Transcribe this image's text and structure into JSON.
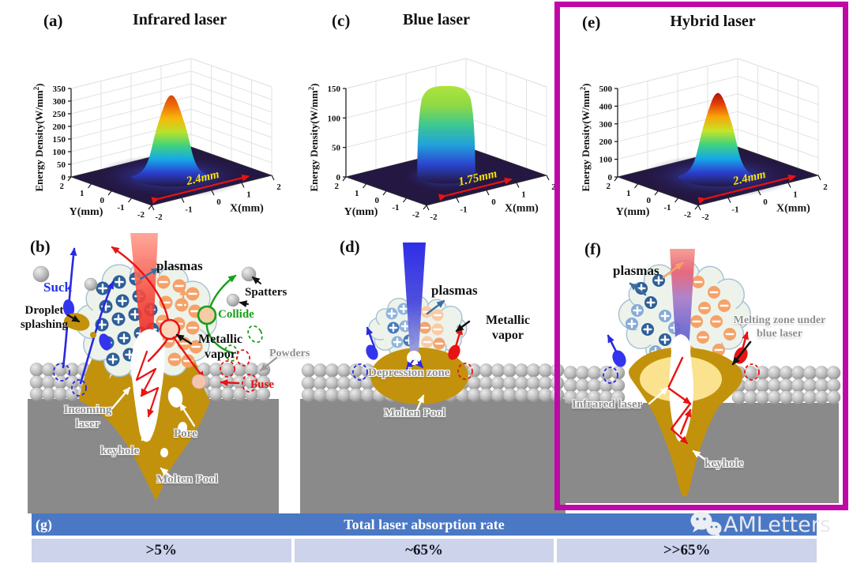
{
  "colors": {
    "magenta_border": "#c008a8",
    "table_header_bg": "#4a78c4",
    "table_row_bg": "#cdd3ea",
    "molten_pool_gold": "#c3920c",
    "melting_zone_yellow": "#fbe28e",
    "substrate_gray": "#8a8a8a",
    "infrared_beam_red": "#ee2222",
    "blue_beam": "#2323e6",
    "plasma_plus_blue": "#2e5f99",
    "plasma_minus_orange": "#f5a269",
    "annotation_yellow": "#ffe400",
    "annotation_red": "#e81313"
  },
  "panels": {
    "a": {
      "label": "(a)",
      "title": "Infrared laser"
    },
    "b": {
      "label": "(b)",
      "labels": {
        "plasmas": "plasmas",
        "suck": "Suck",
        "droplet_splashing": "Droplet splashing",
        "spatters": "Spatters",
        "collide": "Collide",
        "metallic_vapor": "Metallic vapor",
        "powders": "Powders",
        "fuse": "Fuse",
        "incoming_laser": "Incoming laser",
        "keyhole": "keyhole",
        "pore": "Pore",
        "molten_pool": "Molten Pool"
      }
    },
    "c": {
      "label": "(c)",
      "title": "Blue laser"
    },
    "d": {
      "label": "(d)",
      "labels": {
        "plasmas": "plasmas",
        "metallic_vapor": "Metallic vapor",
        "depression_zone": "Depression zone",
        "molten_pool": "Molten Pool"
      }
    },
    "e": {
      "label": "(e)",
      "title": "Hybrid laser"
    },
    "f": {
      "label": "(f)",
      "labels": {
        "plasmas": "plasmas",
        "melting_zone": "Melting zone under blue laser",
        "infrared_laser": "Infrared laser",
        "keyhole": "keyhole"
      }
    },
    "g": {
      "label": "(g)"
    }
  },
  "watermark": {
    "name": "AMLetters"
  },
  "chart_data": [
    {
      "type": "area",
      "subtype": "3d-surface",
      "panel": "(a)",
      "title": "Infrared laser",
      "profile": "gaussian",
      "colormap": "jet",
      "zlabel": "Energy Density(W/mm2)",
      "xlabel": "X(mm)",
      "ylabel": "Y(mm)",
      "zlim": [
        0,
        350
      ],
      "zticks": [
        0,
        50,
        100,
        150,
        200,
        250,
        300,
        350
      ],
      "xlim": [
        -2,
        2
      ],
      "ylim": [
        -2,
        2
      ],
      "xticks": [
        -2,
        -1,
        0,
        1,
        2
      ],
      "yticks": [
        2,
        1,
        0,
        -1,
        -2
      ],
      "peak_value": 320,
      "spot_diameter_mm": 2.4,
      "spot_label": "2.4mm",
      "gradient": [
        "#241742",
        "#2b3fd0",
        "#16a8e8",
        "#3fd27e",
        "#b8e22b",
        "#f7b70a",
        "#ec6a0a",
        "#d03808"
      ]
    },
    {
      "type": "area",
      "subtype": "3d-surface",
      "panel": "(c)",
      "title": "Blue laser",
      "profile": "flattop",
      "colormap": "jet",
      "zlabel": "Energy Density(W/mm2)",
      "xlabel": "X(mm)",
      "ylabel": "Y(mm)",
      "zlim": [
        0,
        150
      ],
      "zticks": [
        0,
        50,
        100,
        150
      ],
      "xlim": [
        -2,
        2
      ],
      "ylim": [
        -2,
        2
      ],
      "xticks": [
        -2,
        -1,
        0,
        1,
        2
      ],
      "yticks": [
        2,
        1,
        0,
        -1,
        -2
      ],
      "peak_value": 150,
      "spot_diameter_mm": 1.75,
      "spot_label": "1.75mm",
      "gradient": [
        "#241742",
        "#2b46d0",
        "#22a2dc",
        "#3cc892",
        "#8fd944",
        "#aee43c"
      ]
    },
    {
      "type": "area",
      "subtype": "3d-surface",
      "panel": "(e)",
      "title": "Hybrid laser",
      "profile": "gaussian",
      "colormap": "jet",
      "zlabel": "Energy Density(W/mm2)",
      "xlabel": "X(mm)",
      "ylabel": "Y(mm)",
      "zlim": [
        0,
        500
      ],
      "zticks": [
        0,
        100,
        200,
        300,
        400,
        500
      ],
      "xlim": [
        -2,
        2
      ],
      "ylim": [
        -2,
        2
      ],
      "xticks": [
        -2,
        -1,
        0,
        1,
        2
      ],
      "yticks": [
        2,
        1,
        0,
        -1,
        -2
      ],
      "peak_value": 470,
      "spot_diameter_mm": 2.4,
      "spot_label": "2.4mm",
      "gradient": [
        "#241742",
        "#2b3fd0",
        "#16a8e8",
        "#3fd27e",
        "#c8e426",
        "#f7a50a",
        "#e03808",
        "#8c0f06"
      ]
    },
    {
      "type": "table",
      "panel": "(g)",
      "title": "Total laser absorption rate",
      "values": [
        ">5%",
        "~65%",
        ">>65%"
      ]
    }
  ]
}
